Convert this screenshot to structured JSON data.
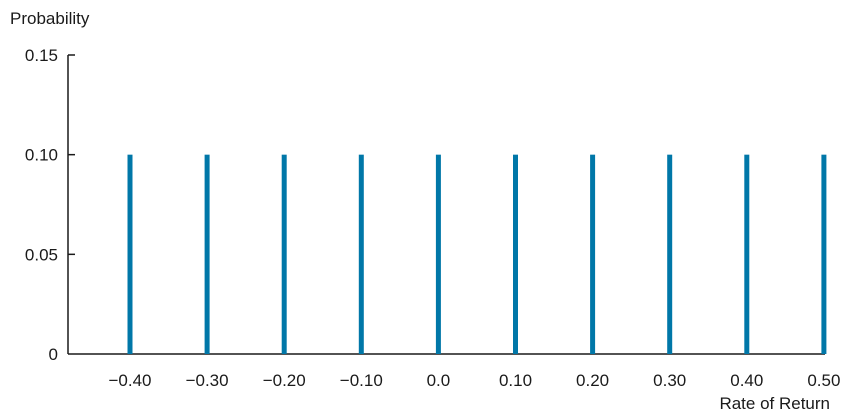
{
  "chart_data": {
    "type": "bar",
    "subtype": "probability-spikes",
    "ylabel": "Probability",
    "xlabel": "Rate of Return",
    "x_ticks": [
      "−0.40",
      "−0.30",
      "−0.20",
      "−0.10",
      "0.0",
      "0.10",
      "0.20",
      "0.30",
      "0.40",
      "0.50"
    ],
    "x": [
      -0.4,
      -0.3,
      -0.2,
      -0.1,
      0.0,
      0.1,
      0.2,
      0.3,
      0.4,
      0.5
    ],
    "values": [
      0.1,
      0.1,
      0.1,
      0.1,
      0.1,
      0.1,
      0.1,
      0.1,
      0.1,
      0.1
    ],
    "y_ticks": [
      "0",
      "0.05",
      "0.10",
      "0.15"
    ],
    "y_tick_values": [
      0,
      0.05,
      0.1,
      0.15
    ],
    "ylim": [
      0,
      0.15
    ],
    "grid": false,
    "bar_color": "#0077a8",
    "axis_color": "#1a1a1a"
  }
}
